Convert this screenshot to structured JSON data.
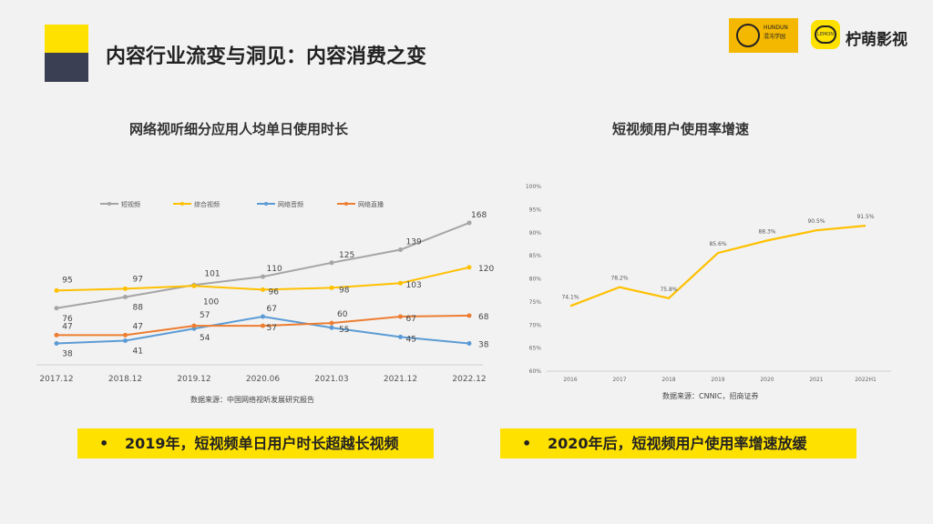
{
  "header": {
    "title": "内容行业流变与洞见：内容消费之变"
  },
  "logos": {
    "brand1_line1": "HUNDUN",
    "brand1_line2": "混沌学园",
    "brand2_icon": "LEMON",
    "brand2_name": "柠萌影视"
  },
  "chart_data": [
    {
      "type": "line",
      "title": "网络视听细分应用人均单日使用时长",
      "categories": [
        "2017.12",
        "2018.12",
        "2019.12",
        "2020.06",
        "2021.03",
        "2021.12",
        "2022.12"
      ],
      "series": [
        {
          "name": "短视频",
          "color": "#a5a5a5",
          "values": [
            76,
            88,
            101,
            110,
            125,
            139,
            168
          ]
        },
        {
          "name": "综合视频",
          "color": "#ffc000",
          "values": [
            95,
            97,
            100,
            96,
            98,
            103,
            120
          ]
        },
        {
          "name": "网络音频",
          "color": "#5b9bd5",
          "values": [
            38,
            41,
            54,
            67,
            55,
            45,
            38
          ]
        },
        {
          "name": "网络直播",
          "color": "#ed7d31",
          "values": [
            47,
            47,
            57,
            57,
            60,
            67,
            68
          ]
        }
      ],
      "legend": "top",
      "grid": false,
      "source": "数据来源：中国网络视听发展研究报告"
    },
    {
      "type": "line",
      "title": "短视频用户使用率增速",
      "categories": [
        "2016",
        "2017",
        "2018",
        "2019",
        "2020",
        "2021",
        "2022H1"
      ],
      "series": [
        {
          "color": "#ffc000",
          "values": [
            74.1,
            78.2,
            75.8,
            85.6,
            88.3,
            90.5,
            91.5
          ],
          "labels": [
            "74.1%",
            "78.2%",
            "75.8%",
            "85.6%",
            "88.3%",
            "90.5%",
            "91.5%"
          ]
        }
      ],
      "ylim": [
        60,
        100
      ],
      "yticks": [
        "60%",
        "65%",
        "70%",
        "75%",
        "80%",
        "85%",
        "90%",
        "95%",
        "100%"
      ],
      "grid": false,
      "source": "数据来源：CNNIC，招商证券"
    }
  ],
  "callouts": {
    "bullet": "•",
    "left": "2019年，短视频单日用户时长超越长视频",
    "right": "2020年后，短视频用户使用率增速放缓"
  }
}
